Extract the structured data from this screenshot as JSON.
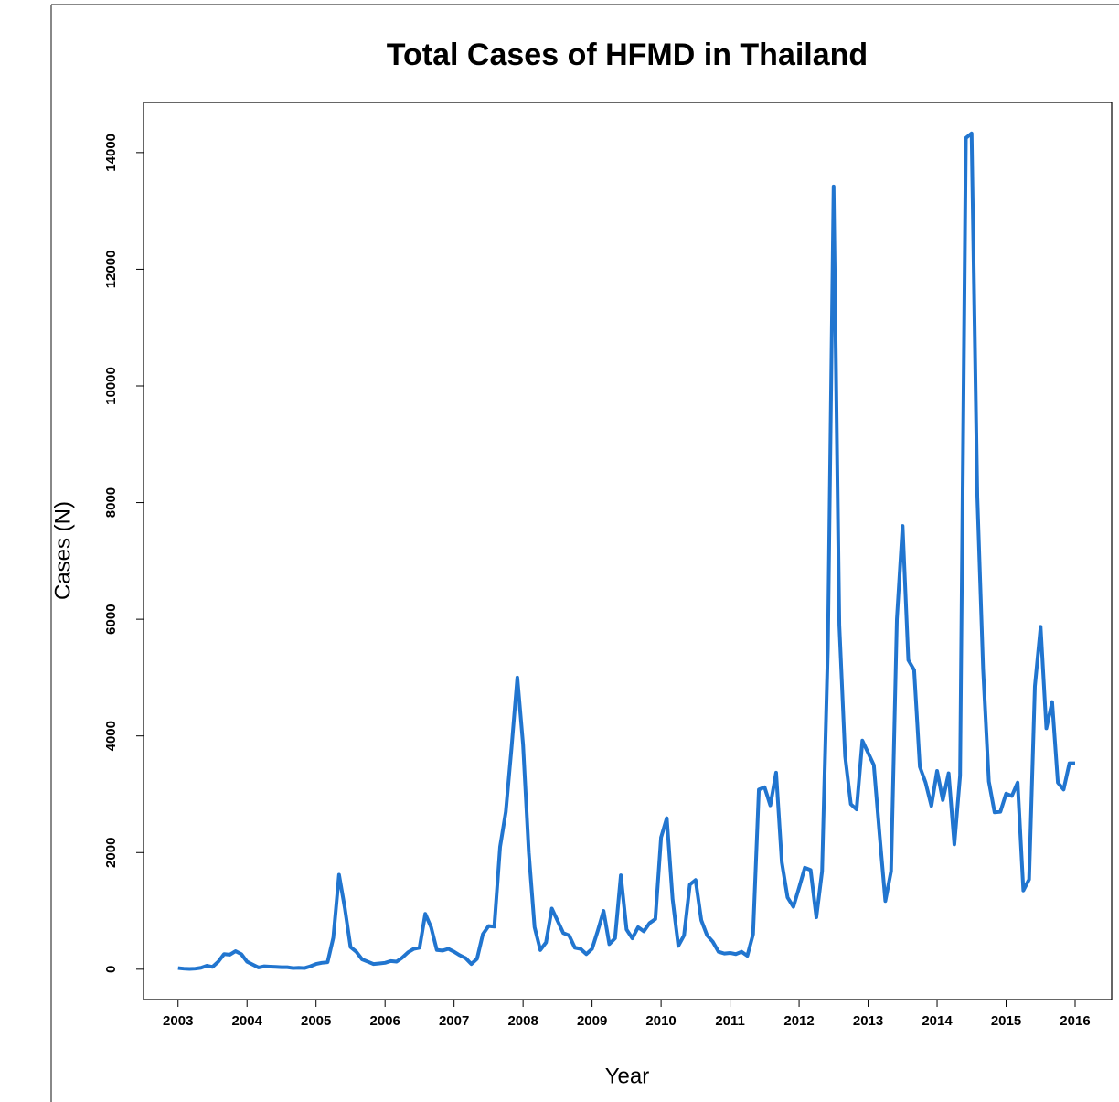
{
  "chart_data": {
    "type": "line",
    "title": "Total Cases of HFMD in Thailand",
    "x_label": "Year",
    "y_label": "Cases (N)",
    "xlim": [
      2002.5,
      2016.53
    ],
    "ylim": [
      -520,
      14860
    ],
    "xticks": [
      2003,
      2004,
      2005,
      2006,
      2007,
      2008,
      2009,
      2010,
      2011,
      2012,
      2013,
      2014,
      2015,
      2016
    ],
    "yticks": [
      0,
      2000,
      4000,
      6000,
      8000,
      10000,
      12000,
      14000
    ],
    "x": [
      2003,
      2003.083,
      2003.167,
      2003.25,
      2003.333,
      2003.417,
      2003.5,
      2003.583,
      2003.667,
      2003.75,
      2003.833,
      2003.917,
      2004,
      2004.083,
      2004.167,
      2004.25,
      2004.333,
      2004.417,
      2004.5,
      2004.583,
      2004.667,
      2004.75,
      2004.833,
      2004.917,
      2005,
      2005.083,
      2005.167,
      2005.25,
      2005.333,
      2005.417,
      2005.5,
      2005.583,
      2005.667,
      2005.75,
      2005.833,
      2005.917,
      2006,
      2006.083,
      2006.167,
      2006.25,
      2006.333,
      2006.417,
      2006.5,
      2006.583,
      2006.667,
      2006.75,
      2006.833,
      2006.917,
      2007,
      2007.083,
      2007.167,
      2007.25,
      2007.333,
      2007.417,
      2007.5,
      2007.583,
      2007.667,
      2007.75,
      2007.833,
      2007.917,
      2008,
      2008.083,
      2008.167,
      2008.25,
      2008.333,
      2008.417,
      2008.5,
      2008.583,
      2008.667,
      2008.75,
      2008.833,
      2008.917,
      2009,
      2009.083,
      2009.167,
      2009.25,
      2009.333,
      2009.417,
      2009.5,
      2009.583,
      2009.667,
      2009.75,
      2009.833,
      2009.917,
      2010,
      2010.083,
      2010.167,
      2010.25,
      2010.333,
      2010.417,
      2010.5,
      2010.583,
      2010.667,
      2010.75,
      2010.833,
      2010.917,
      2011,
      2011.083,
      2011.167,
      2011.25,
      2011.333,
      2011.417,
      2011.5,
      2011.583,
      2011.667,
      2011.75,
      2011.833,
      2011.917,
      2012,
      2012.083,
      2012.167,
      2012.25,
      2012.333,
      2012.417,
      2012.5,
      2012.583,
      2012.667,
      2012.75,
      2012.833,
      2012.917,
      2013,
      2013.083,
      2013.167,
      2013.25,
      2013.333,
      2013.417,
      2013.5,
      2013.583,
      2013.667,
      2013.75,
      2013.833,
      2013.917,
      2014,
      2014.083,
      2014.167,
      2014.25,
      2014.333,
      2014.417,
      2014.5,
      2014.583,
      2014.667,
      2014.75,
      2014.833,
      2014.917,
      2015,
      2015.083,
      2015.167,
      2015.25,
      2015.333,
      2015.417,
      2015.5,
      2015.583,
      2015.667,
      2015.75,
      2015.833,
      2015.917,
      2016
    ],
    "series": [
      {
        "name": "Cases",
        "color": "#2175cf",
        "values": [
          20,
          10,
          5,
          10,
          25,
          60,
          40,
          130,
          260,
          250,
          310,
          260,
          130,
          80,
          30,
          50,
          45,
          40,
          35,
          35,
          20,
          25,
          20,
          50,
          90,
          110,
          120,
          540,
          1620,
          1050,
          380,
          300,
          170,
          130,
          90,
          100,
          110,
          140,
          130,
          200,
          290,
          350,
          370,
          950,
          720,
          330,
          320,
          350,
          300,
          240,
          190,
          90,
          180,
          600,
          740,
          730,
          2100,
          2700,
          3800,
          5000,
          3850,
          2000,
          720,
          330,
          460,
          1040,
          830,
          620,
          580,
          370,
          350,
          260,
          350,
          660,
          1000,
          430,
          530,
          1610,
          680,
          530,
          720,
          650,
          790,
          860,
          2260,
          2590,
          1200,
          400,
          580,
          1450,
          1530,
          840,
          580,
          470,
          300,
          270,
          280,
          260,
          300,
          230,
          600,
          3080,
          3120,
          2810,
          3370,
          1830,
          1230,
          1070,
          1400,
          1740,
          1700,
          890,
          1680,
          5500,
          13420,
          5900,
          3650,
          2830,
          2740,
          3920,
          3710,
          3500,
          2300,
          1170,
          1680,
          6000,
          7600,
          5300,
          5130,
          3470,
          3200,
          2800,
          3400,
          2900,
          3360,
          2140,
          3320,
          14250,
          14330,
          8100,
          5140,
          3220,
          2690,
          2700,
          3010,
          2970,
          3200,
          1350,
          1540,
          4850,
          5870,
          4130,
          4580,
          3200,
          3080,
          3530,
          3530
        ]
      }
    ]
  }
}
